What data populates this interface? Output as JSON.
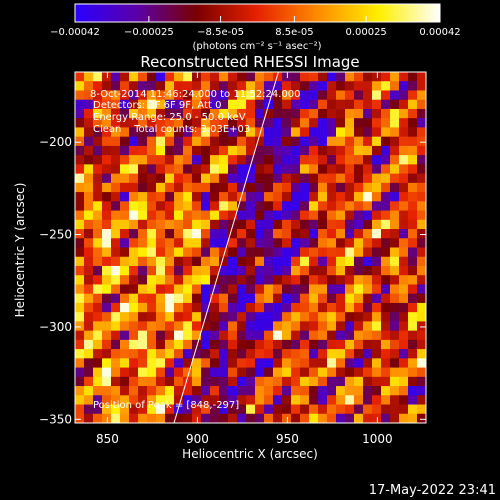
{
  "chart_data": {
    "type": "heatmap",
    "title": "Reconstructed RHESSI Image",
    "xlabel": "Heliocentric X (arcsec)",
    "ylabel": "Heliocentric Y (arcsec)",
    "xlim": [
      832,
      1027
    ],
    "ylim": [
      -352,
      -162
    ],
    "x_ticks": [
      850,
      900,
      950,
      1000
    ],
    "x_tick_labels": [
      "850",
      "900",
      "950",
      "1000"
    ],
    "y_ticks": [
      -200,
      -250,
      -300,
      -350
    ],
    "y_tick_labels": [
      "-200",
      "-250",
      "-300",
      "-350"
    ],
    "colorbar": {
      "min": -0.00042,
      "max": 0.00042,
      "tick_values": [
        -0.00042,
        -0.00025,
        -8.5e-05,
        8.5e-05,
        0.00025,
        0.00042
      ],
      "tick_labels": [
        "-0.00042",
        "-0.00025",
        "-8.5e-05",
        "8.5e-05",
        "0.00025",
        "0.00042"
      ],
      "units": "(photons cm⁻² s⁻¹ asec⁻²)",
      "colormap": [
        "#2a00ff",
        "#5a00aa",
        "#7a0000",
        "#e62200",
        "#ff8c00",
        "#fff000",
        "#ffffff"
      ]
    },
    "grid": false,
    "annotations": [
      "8-Oct-2014 11:46:24.000 to 11:52:24.000",
      "Detectors: 3F 6F 9F, Att 0",
      "Energy Range: 25.0 - 50.0 keV",
      "Clean    Total counts: 3.03E+03",
      "Position of Peak = [848,-297]"
    ],
    "limb_line": {
      "points": [
        [
          887,
          -352
        ],
        [
          945,
          -162
        ]
      ]
    },
    "heatmap": {
      "columns": 39,
      "rows": 38,
      "description_seed": 20141008
    }
  },
  "footer": {
    "timestamp": "17-May-2022 23:41"
  }
}
